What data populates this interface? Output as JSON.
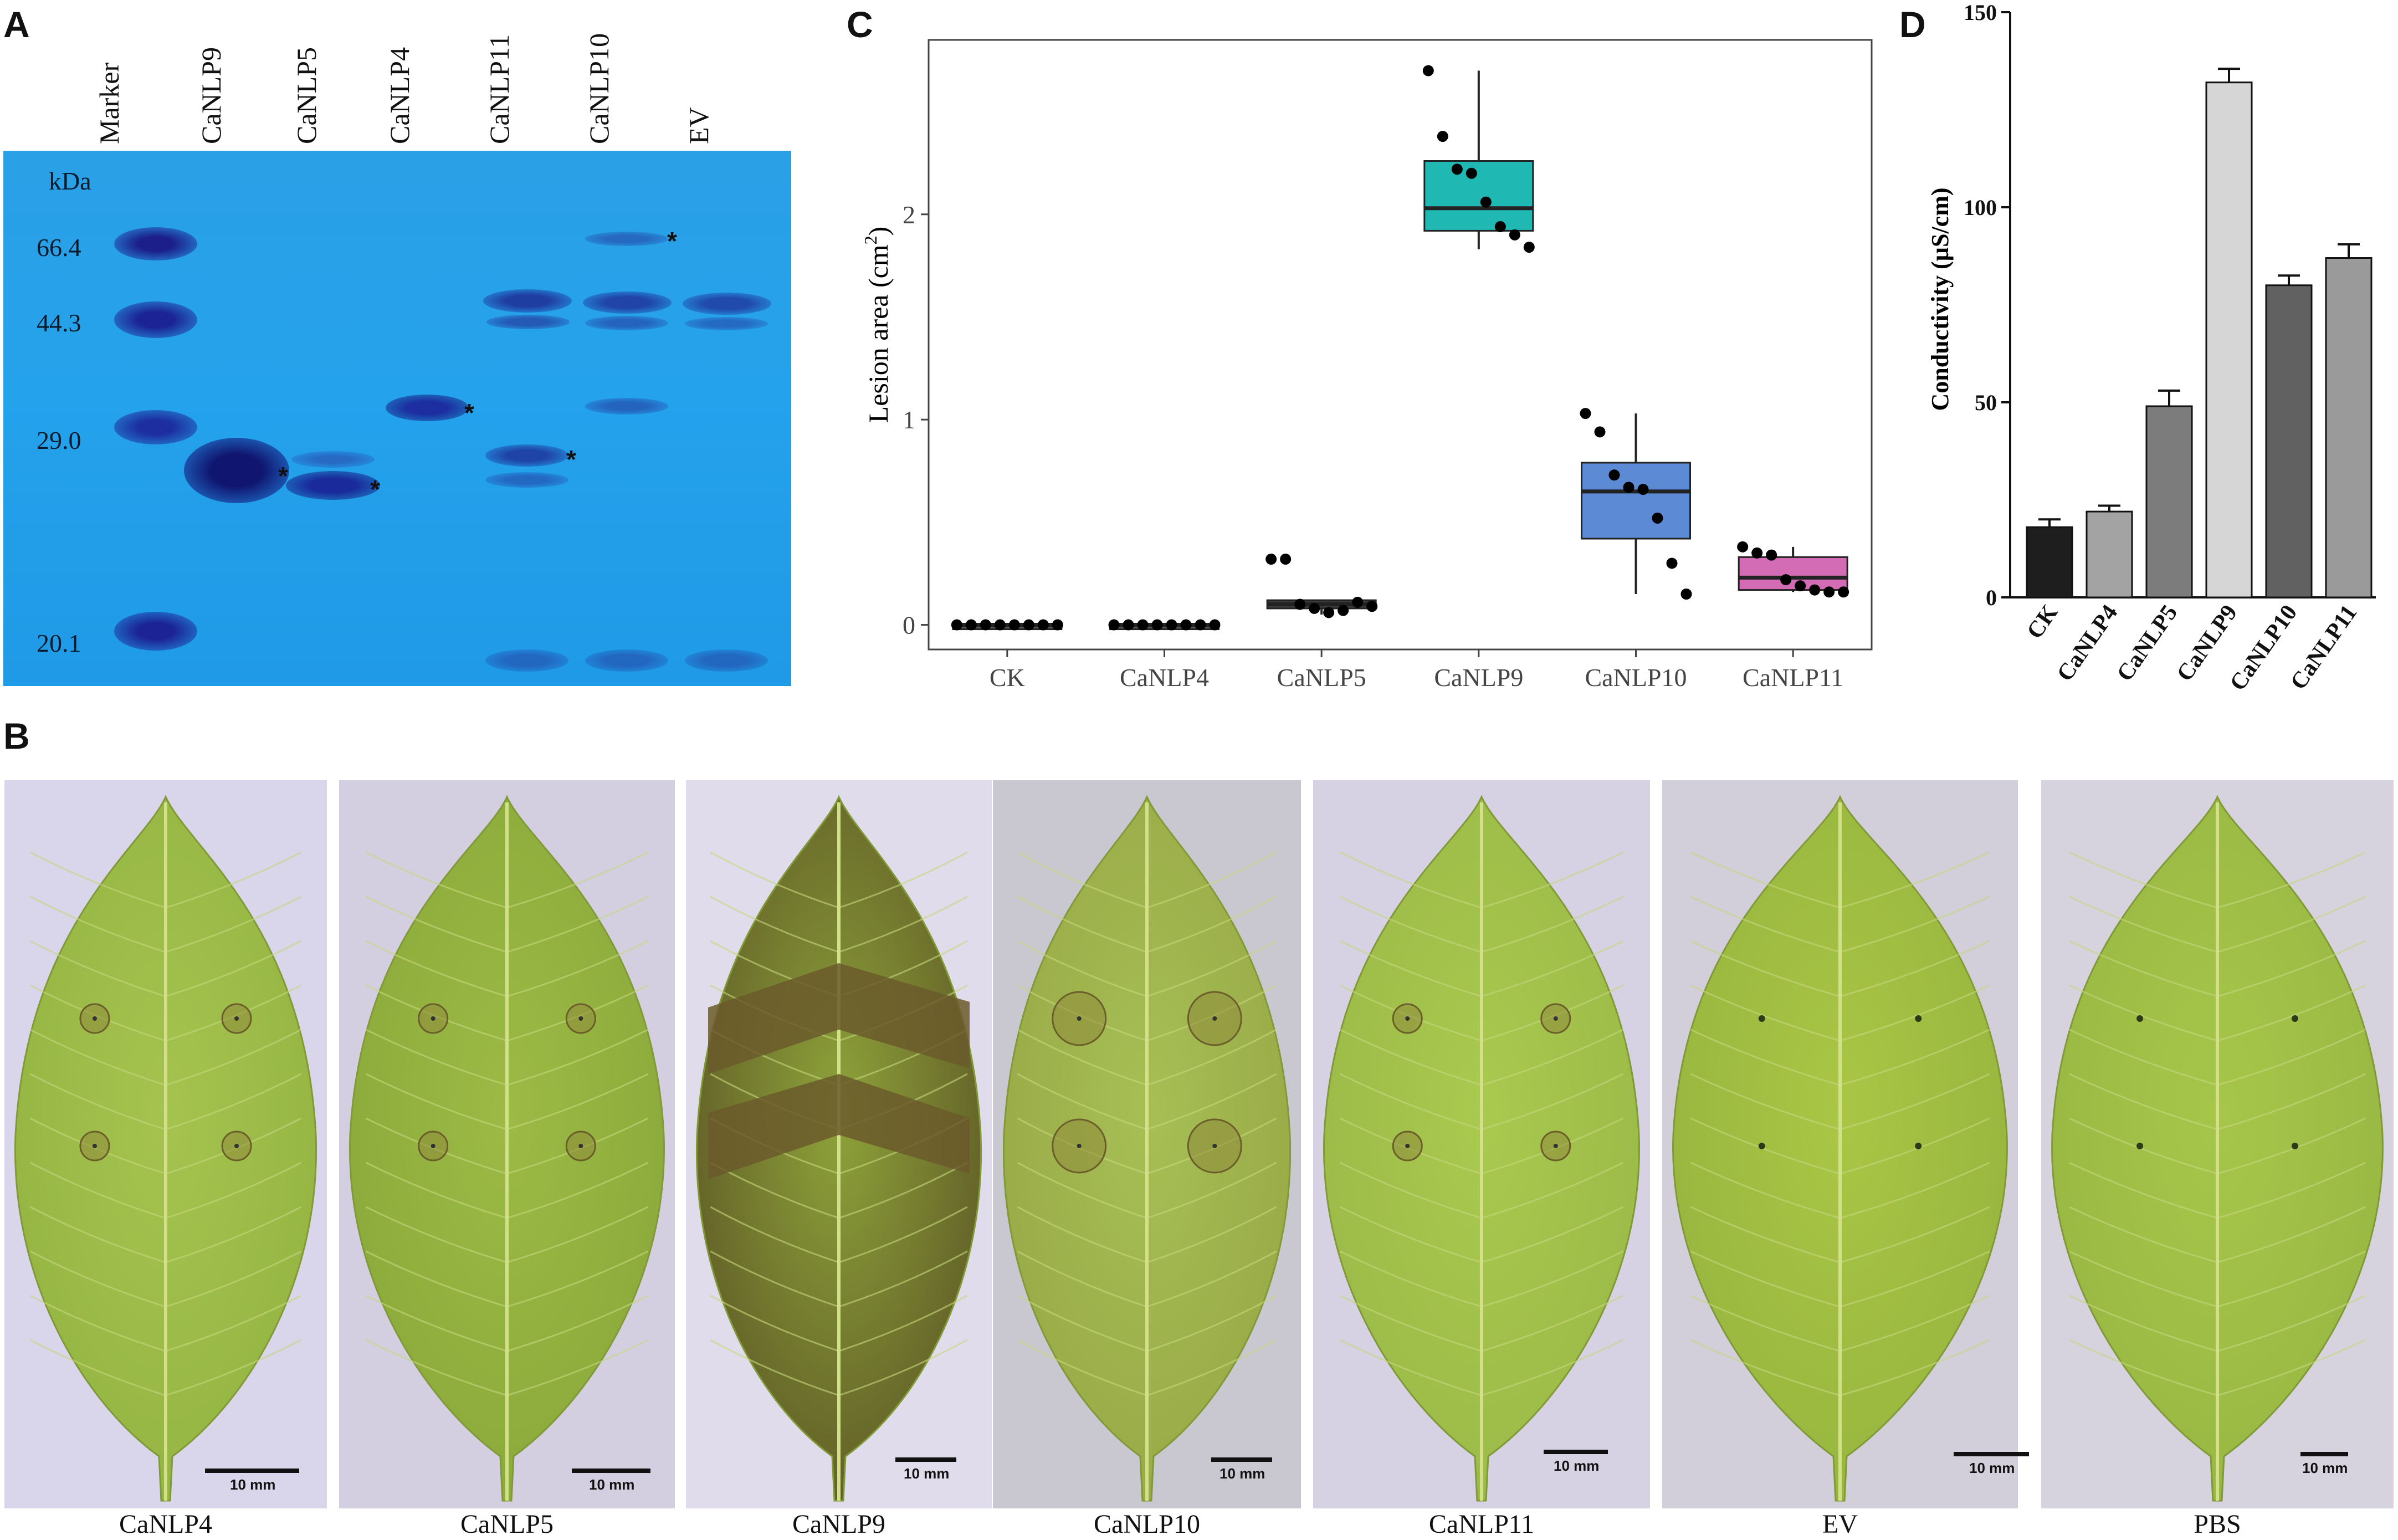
{
  "panels": {
    "a": "A",
    "b": "B",
    "c": "C",
    "d": "D"
  },
  "gel": {
    "lanes": [
      "Marker",
      "CaNLP9",
      "CaNLP5",
      "CaNLP4",
      "CaNLP11",
      "CaNLP10",
      "EV"
    ],
    "kda_label": "kDa",
    "markers": [
      "66.4",
      "44.3",
      "29.0",
      "20.1"
    ],
    "star": "*"
  },
  "leaves": {
    "captions": [
      "CaNLP4",
      "CaNLP5",
      "CaNLP9",
      "CaNLP10",
      "CaNLP11",
      "EV",
      "PBS"
    ],
    "scale_label": "10 mm"
  },
  "chart_data": [
    {
      "panel": "C",
      "type": "box",
      "categories": [
        "CK",
        "CaNLP4",
        "CaNLP5",
        "CaNLP9",
        "CaNLP10",
        "CaNLP11"
      ],
      "ylabel": "Lesion area (cm²)",
      "ylabel_main": "Lesion area (cm",
      "ylabel_sup": "2",
      "ylabel_close": ")",
      "ylim": [
        -0.12,
        2.85
      ],
      "yticks": [
        0,
        1,
        2
      ],
      "ytick_labels": [
        "0",
        "1",
        "2"
      ],
      "colors": [
        "#555555",
        "#555555",
        "#3d3d3d",
        "#1fb8b3",
        "#5d8ad4",
        "#d36bb5"
      ],
      "boxes": [
        {
          "q1": 0.0,
          "median": 0.0,
          "q3": 0.0,
          "min": 0.0,
          "max": 0.0
        },
        {
          "q1": 0.0,
          "median": 0.0,
          "q3": 0.0,
          "min": 0.0,
          "max": 0.0
        },
        {
          "q1": 0.08,
          "median": 0.1,
          "q3": 0.12,
          "min": 0.05,
          "max": 0.12
        },
        {
          "q1": 1.92,
          "median": 2.03,
          "q3": 2.26,
          "min": 1.83,
          "max": 2.7
        },
        {
          "q1": 0.42,
          "median": 0.65,
          "q3": 0.79,
          "min": 0.15,
          "max": 1.03
        },
        {
          "q1": 0.17,
          "median": 0.23,
          "q3": 0.33,
          "min": 0.16,
          "max": 0.38
        }
      ],
      "points": [
        [
          0,
          0,
          0,
          0,
          0,
          0,
          0,
          0
        ],
        [
          0,
          0,
          0,
          0,
          0,
          0,
          0,
          0
        ],
        [
          0.32,
          0.32,
          0.1,
          0.08,
          0.06,
          0.07,
          0.11,
          0.09
        ],
        [
          2.7,
          2.38,
          2.22,
          2.2,
          2.06,
          1.94,
          1.9,
          1.84
        ],
        [
          1.03,
          0.94,
          0.73,
          0.67,
          0.66,
          0.52,
          0.3,
          0.15
        ],
        [
          0.38,
          0.35,
          0.34,
          0.22,
          0.19,
          0.17,
          0.16,
          0.16
        ]
      ]
    },
    {
      "panel": "D",
      "type": "bar",
      "categories": [
        "CK",
        "CaNLP4",
        "CaNLP5",
        "CaNLP9",
        "CaNLP10",
        "CaNLP11"
      ],
      "values": [
        18,
        22,
        49,
        132,
        80,
        87
      ],
      "errors": [
        2,
        1.5,
        4,
        3.5,
        2.5,
        3.5
      ],
      "colors": [
        "#1e1e1e",
        "#a3a3a3",
        "#7c7c7c",
        "#d6d6d6",
        "#616161",
        "#9a9a9a"
      ],
      "ylabel": "Conductivity (µS/cm)",
      "ylim": [
        0,
        150
      ],
      "yticks": [
        0,
        50,
        100,
        150
      ],
      "ytick_labels": [
        "0",
        "50",
        "100",
        "150"
      ]
    }
  ]
}
